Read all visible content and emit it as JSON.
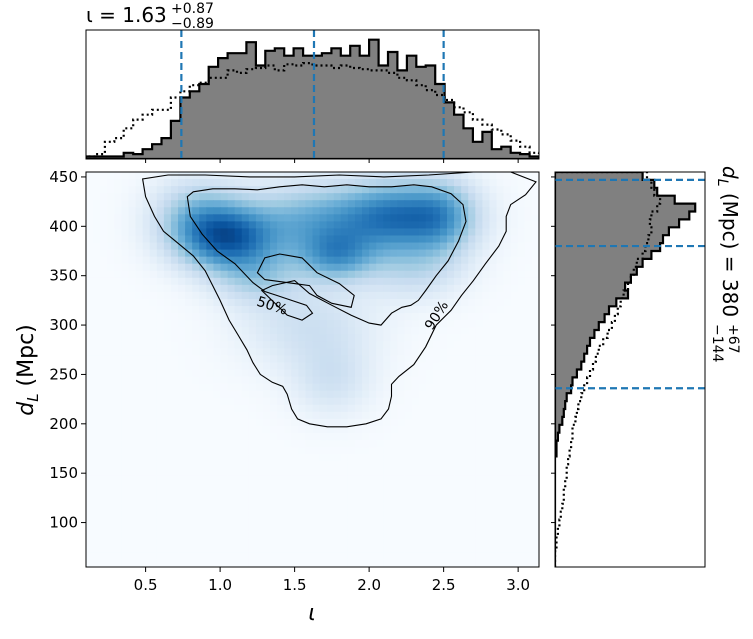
{
  "chart_data": [
    {
      "panel": "top-marginal",
      "type": "histogram",
      "variable": "ι",
      "title": {
        "main": "ι = 1.63",
        "sup": "+0.87",
        "sub": "−0.89"
      },
      "xlim": [
        0.1,
        3.14
      ],
      "quantile_lines": [
        0.74,
        1.63,
        2.5
      ],
      "line_color": "#1f77b4",
      "fill_color": "#808080",
      "bin_edges": [
        0.1,
        0.1633,
        0.2267,
        0.29,
        0.3533,
        0.4167,
        0.48,
        0.5433,
        0.6067,
        0.67,
        0.7333,
        0.7967,
        0.86,
        0.9233,
        0.9867,
        1.05,
        1.1133,
        1.1767,
        1.24,
        1.3033,
        1.3667,
        1.43,
        1.4933,
        1.5567,
        1.62,
        1.6833,
        1.7467,
        1.81,
        1.8733,
        1.9367,
        2.0,
        2.0633,
        2.1267,
        2.19,
        2.2533,
        2.3167,
        2.38,
        2.4433,
        2.5067,
        2.57,
        2.6333,
        2.6967,
        2.76,
        2.8233,
        2.8867,
        2.95,
        3.0133,
        3.0767,
        3.14
      ],
      "posterior_density": [
        0.02,
        0.02,
        0.02,
        0.02,
        0.05,
        0.04,
        0.08,
        0.12,
        0.17,
        0.31,
        0.5,
        0.55,
        0.61,
        0.75,
        0.82,
        0.86,
        0.86,
        0.95,
        0.76,
        0.88,
        0.9,
        0.84,
        0.9,
        0.84,
        0.84,
        0.86,
        0.9,
        0.84,
        0.92,
        0.84,
        0.97,
        0.76,
        0.87,
        0.72,
        0.84,
        0.75,
        0.76,
        0.61,
        0.46,
        0.36,
        0.25,
        0.14,
        0.22,
        0.08,
        0.1,
        0.05,
        0.04,
        0.02
      ],
      "prior_density": [
        0.02,
        0.04,
        0.14,
        0.17,
        0.25,
        0.32,
        0.36,
        0.4,
        0.4,
        0.5,
        0.55,
        0.6,
        0.62,
        0.66,
        0.66,
        0.72,
        0.7,
        0.73,
        0.74,
        0.76,
        0.72,
        0.77,
        0.76,
        0.78,
        0.76,
        0.76,
        0.74,
        0.76,
        0.74,
        0.73,
        0.72,
        0.72,
        0.7,
        0.66,
        0.64,
        0.6,
        0.56,
        0.52,
        0.48,
        0.42,
        0.38,
        0.32,
        0.28,
        0.24,
        0.2,
        0.15,
        0.1,
        0.05
      ]
    },
    {
      "panel": "joint-density",
      "type": "heatmap",
      "xlabel": "ι",
      "ylabel": "d_L (Mpc)",
      "xlim": [
        0.1,
        3.14
      ],
      "ylim": [
        55,
        455
      ],
      "xticks": [
        "0.5",
        "1.0",
        "1.5",
        "2.0",
        "2.5",
        "3.0"
      ],
      "yticks": [
        "100",
        "150",
        "200",
        "250",
        "300",
        "350",
        "400",
        "450"
      ],
      "colormap": "Blues",
      "density_peaks": [
        {
          "x": 1.05,
          "y": 388,
          "sx": 0.22,
          "sy": 22,
          "w": 1.0
        },
        {
          "x": 2.2,
          "y": 410,
          "sx": 0.28,
          "sy": 24,
          "w": 0.95
        },
        {
          "x": 1.6,
          "y": 405,
          "sx": 0.3,
          "sy": 25,
          "w": 0.55
        },
        {
          "x": 1.78,
          "y": 370,
          "sx": 0.18,
          "sy": 18,
          "w": 0.65
        },
        {
          "x": 1.25,
          "y": 350,
          "sx": 0.2,
          "sy": 20,
          "w": 0.35
        },
        {
          "x": 2.3,
          "y": 360,
          "sx": 0.22,
          "sy": 22,
          "w": 0.3
        },
        {
          "x": 1.75,
          "y": 245,
          "sx": 0.18,
          "sy": 25,
          "w": 0.2
        },
        {
          "x": 1.6,
          "y": 300,
          "sx": 0.3,
          "sy": 30,
          "w": 0.22
        },
        {
          "x": 0.85,
          "y": 410,
          "sx": 0.2,
          "sy": 25,
          "w": 0.45
        },
        {
          "x": 2.5,
          "y": 410,
          "sx": 0.15,
          "sy": 25,
          "w": 0.4
        }
      ],
      "contours": [
        {
          "label": "50%",
          "label_pos": [
            1.35,
            320
          ],
          "paths": [
            [
              [
                0.78,
                430
              ],
              [
                0.8,
                410
              ],
              [
                0.88,
                392
              ],
              [
                0.98,
                375
              ],
              [
                1.1,
                362
              ],
              [
                1.22,
                343
              ],
              [
                1.3,
                334
              ],
              [
                1.38,
                330
              ],
              [
                1.48,
                325
              ],
              [
                1.58,
                320
              ],
              [
                1.62,
                312
              ],
              [
                1.55,
                305
              ],
              [
                1.45,
                310
              ],
              [
                1.28,
                335
              ],
              [
                1.35,
                340
              ],
              [
                1.5,
                345
              ],
              [
                1.6,
                332
              ],
              [
                1.75,
                320
              ],
              [
                1.88,
                310
              ],
              [
                2.0,
                302
              ],
              [
                2.08,
                300
              ],
              [
                2.15,
                312
              ],
              [
                2.22,
                318
              ],
              [
                2.28,
                320
              ],
              [
                2.33,
                325
              ],
              [
                2.38,
                335
              ],
              [
                2.45,
                350
              ],
              [
                2.53,
                365
              ],
              [
                2.6,
                385
              ],
              [
                2.65,
                405
              ],
              [
                2.63,
                422
              ],
              [
                2.55,
                433
              ],
              [
                2.42,
                440
              ],
              [
                2.3,
                442
              ],
              [
                2.15,
                440
              ],
              [
                2.0,
                440
              ],
              [
                1.85,
                442
              ],
              [
                1.7,
                440
              ],
              [
                1.55,
                442
              ],
              [
                1.4,
                440
              ],
              [
                1.25,
                437
              ],
              [
                1.1,
                438
              ],
              [
                0.95,
                438
              ],
              [
                0.82,
                435
              ],
              [
                0.78,
                430
              ]
            ],
            [
              [
                1.25,
                353
              ],
              [
                1.3,
                368
              ],
              [
                1.4,
                372
              ],
              [
                1.55,
                368
              ],
              [
                1.65,
                353
              ],
              [
                1.8,
                342
              ],
              [
                1.9,
                330
              ],
              [
                1.88,
                318
              ],
              [
                1.75,
                322
              ],
              [
                1.65,
                330
              ],
              [
                1.6,
                340
              ],
              [
                1.5,
                342
              ],
              [
                1.4,
                344
              ],
              [
                1.3,
                346
              ],
              [
                1.25,
                353
              ]
            ]
          ]
        },
        {
          "label": "90%",
          "label_pos": [
            2.45,
            310
          ],
          "paths": [
            [
              [
                0.48,
                448
              ],
              [
                0.5,
                430
              ],
              [
                0.56,
                410
              ],
              [
                0.62,
                395
              ],
              [
                0.7,
                385
              ],
              [
                0.82,
                370
              ],
              [
                0.9,
                355
              ],
              [
                0.95,
                340
              ],
              [
                1.0,
                325
              ],
              [
                1.06,
                305
              ],
              [
                1.12,
                290
              ],
              [
                1.18,
                275
              ],
              [
                1.22,
                262
              ],
              [
                1.27,
                250
              ],
              [
                1.35,
                242
              ],
              [
                1.42,
                238
              ],
              [
                1.45,
                230
              ],
              [
                1.48,
                215
              ],
              [
                1.52,
                205
              ],
              [
                1.6,
                200
              ],
              [
                1.72,
                197
              ],
              [
                1.85,
                197
              ],
              [
                1.98,
                200
              ],
              [
                2.08,
                205
              ],
              [
                2.13,
                215
              ],
              [
                2.15,
                228
              ],
              [
                2.15,
                240
              ],
              [
                2.2,
                248
              ],
              [
                2.3,
                260
              ],
              [
                2.38,
                278
              ],
              [
                2.45,
                300
              ],
              [
                2.55,
                315
              ],
              [
                2.62,
                330
              ],
              [
                2.7,
                345
              ],
              [
                2.78,
                362
              ],
              [
                2.87,
                380
              ],
              [
                2.92,
                395
              ],
              [
                2.92,
                410
              ],
              [
                2.95,
                422
              ],
              [
                3.05,
                432
              ],
              [
                3.12,
                445
              ],
              [
                2.95,
                455
              ],
              [
                2.7,
                455
              ],
              [
                2.4,
                452
              ],
              [
                2.1,
                450
              ],
              [
                1.8,
                452
              ],
              [
                1.5,
                450
              ],
              [
                1.2,
                450
              ],
              [
                0.9,
                452
              ],
              [
                0.65,
                452
              ],
              [
                0.48,
                448
              ]
            ]
          ]
        }
      ]
    },
    {
      "panel": "right-marginal",
      "type": "histogram",
      "orientation": "horizontal",
      "variable": "d_L",
      "title": {
        "main": "d_L (Mpc) = 380",
        "sup": "+67",
        "sub": "−144"
      },
      "ylim": [
        55,
        455
      ],
      "quantile_lines": [
        236,
        380,
        447
      ],
      "line_color": "#1f77b4",
      "fill_color": "#808080",
      "bin_edges": [
        55,
        63,
        71,
        79,
        87,
        95,
        103,
        111,
        119,
        127,
        135,
        143,
        151,
        159,
        167,
        175,
        183,
        191,
        199,
        207,
        215,
        223,
        231,
        239,
        247,
        255,
        263,
        271,
        279,
        287,
        295,
        303,
        311,
        319,
        327,
        335,
        343,
        351,
        359,
        367,
        375,
        383,
        391,
        399,
        407,
        415,
        423,
        431,
        439,
        447,
        455
      ],
      "posterior_density": [
        0.0,
        0.0,
        0.0,
        0.0,
        0.0,
        0.0,
        0.0,
        0.0,
        0.0,
        0.0,
        0.0,
        0.0,
        0.0,
        0.0,
        0.01,
        0.01,
        0.02,
        0.03,
        0.05,
        0.06,
        0.07,
        0.08,
        0.11,
        0.12,
        0.15,
        0.18,
        0.2,
        0.22,
        0.24,
        0.27,
        0.3,
        0.34,
        0.37,
        0.42,
        0.5,
        0.48,
        0.52,
        0.56,
        0.6,
        0.66,
        0.72,
        0.74,
        0.78,
        0.85,
        0.92,
        0.96,
        0.82,
        0.7,
        0.68,
        0.6
      ],
      "prior_density": [
        0.0,
        0.0,
        0.01,
        0.01,
        0.02,
        0.03,
        0.04,
        0.05,
        0.06,
        0.06,
        0.07,
        0.08,
        0.08,
        0.09,
        0.1,
        0.11,
        0.12,
        0.12,
        0.14,
        0.15,
        0.16,
        0.18,
        0.2,
        0.22,
        0.24,
        0.26,
        0.28,
        0.3,
        0.33,
        0.36,
        0.39,
        0.41,
        0.43,
        0.45,
        0.47,
        0.5,
        0.52,
        0.54,
        0.56,
        0.6,
        0.62,
        0.64,
        0.66,
        0.65,
        0.66,
        0.7,
        0.72,
        0.68,
        0.66,
        0.63
      ]
    }
  ]
}
